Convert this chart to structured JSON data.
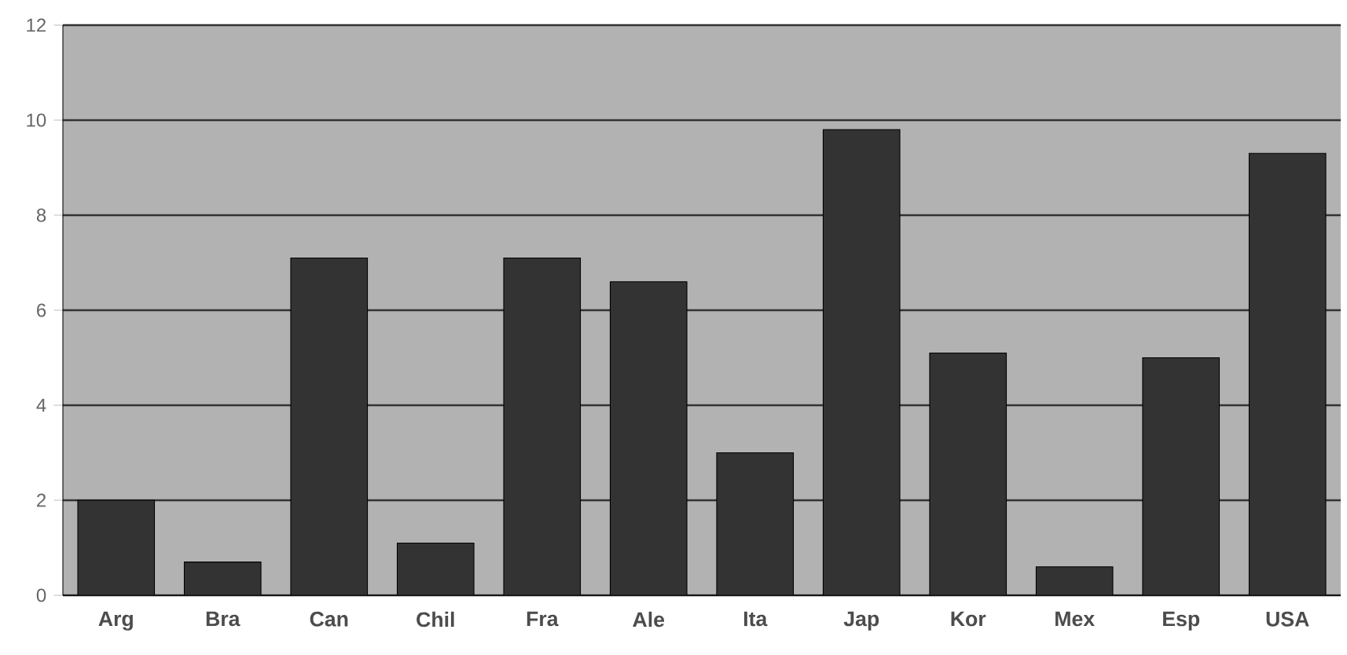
{
  "chart_data": {
    "type": "bar",
    "categories": [
      "Arg",
      "Bra",
      "Can",
      "Chil",
      "Fra",
      "Ale",
      "Ita",
      "Jap",
      "Kor",
      "Mex",
      "Esp",
      "USA"
    ],
    "values": [
      2.0,
      0.7,
      7.1,
      1.1,
      7.1,
      6.6,
      3.0,
      9.8,
      5.1,
      0.6,
      5.0,
      9.3
    ],
    "color": "#333333",
    "ylim": [
      0,
      12
    ],
    "yticks": [
      0,
      2,
      4,
      6,
      8,
      10,
      12
    ],
    "grid": "y"
  }
}
